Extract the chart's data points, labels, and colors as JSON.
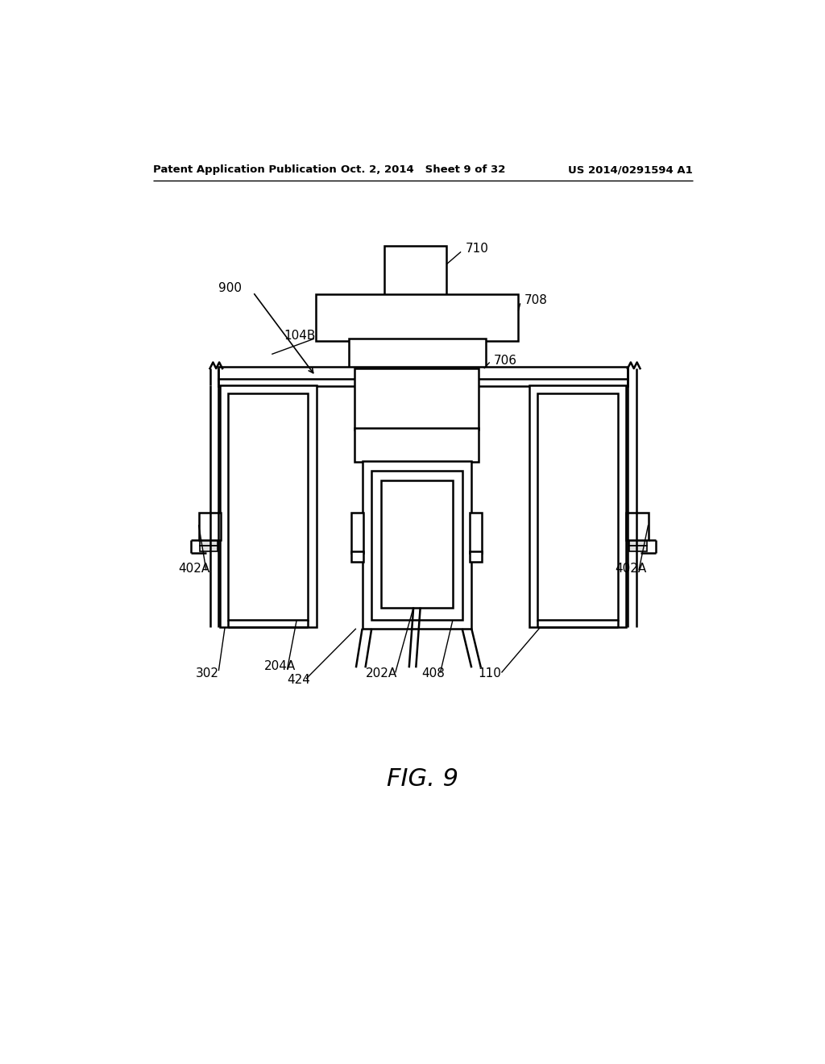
{
  "title": "FIG. 9",
  "header_left": "Patent Application Publication",
  "header_center": "Oct. 2, 2014   Sheet 9 of 32",
  "header_right": "US 2014/0291594 A1",
  "bg_color": "#ffffff",
  "line_color": "#000000"
}
